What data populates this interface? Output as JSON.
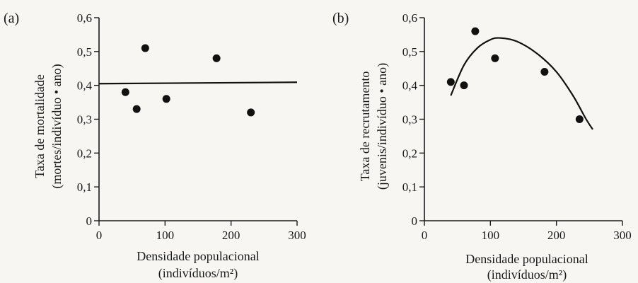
{
  "chart_data": [
    {
      "panel": "(a)",
      "type": "scatter",
      "xlabel": "Densidade populacional",
      "xunit_line": "(indivíduos/m²)",
      "ylabel": "Taxa de mortalidade",
      "yunit_line": "(mortes/indivíduo • ano)",
      "xlim": [
        0,
        300
      ],
      "ylim": [
        0,
        0.6
      ],
      "xticks": [
        0,
        100,
        200,
        300
      ],
      "xtick_labels": [
        "0",
        "100",
        "200",
        "300"
      ],
      "yticks": [
        0,
        0.1,
        0.2,
        0.3,
        0.4,
        0.5,
        0.6
      ],
      "ytick_labels": [
        "0",
        "0,1",
        "0,2",
        "0,3",
        "0,4",
        "0,5",
        "0,6"
      ],
      "points": [
        {
          "x": 40,
          "y": 0.38
        },
        {
          "x": 57,
          "y": 0.33
        },
        {
          "x": 70,
          "y": 0.51
        },
        {
          "x": 102,
          "y": 0.36
        },
        {
          "x": 178,
          "y": 0.48
        },
        {
          "x": 230,
          "y": 0.32
        }
      ],
      "fit": {
        "kind": "horizontal",
        "y": 0.405,
        "x_range": [
          0,
          300
        ]
      },
      "grid": false
    },
    {
      "panel": "(b)",
      "type": "scatter",
      "xlabel": "Densidade populacional",
      "xunit_line": "(indivíduos/m²)",
      "ylabel": "Taxa de recrutamento",
      "yunit_line": "(juvenis/indivíduo • ano)",
      "xlim": [
        0,
        300
      ],
      "ylim": [
        0,
        0.6
      ],
      "xticks": [
        0,
        100,
        200,
        300
      ],
      "xtick_labels": [
        "0",
        "100",
        "200",
        "300"
      ],
      "yticks": [
        0,
        0.1,
        0.2,
        0.3,
        0.4,
        0.5,
        0.6
      ],
      "ytick_labels": [
        "0",
        "0,1",
        "0,2",
        "0,3",
        "0,4",
        "0,5",
        "0,6"
      ],
      "points": [
        {
          "x": 40,
          "y": 0.41
        },
        {
          "x": 60,
          "y": 0.4
        },
        {
          "x": 77,
          "y": 0.56
        },
        {
          "x": 107,
          "y": 0.48
        },
        {
          "x": 182,
          "y": 0.44
        },
        {
          "x": 235,
          "y": 0.3
        }
      ],
      "fit": {
        "kind": "curve",
        "points": [
          [
            40,
            0.37
          ],
          [
            60,
            0.46
          ],
          [
            80,
            0.51
          ],
          [
            100,
            0.535
          ],
          [
            115,
            0.54
          ],
          [
            140,
            0.53
          ],
          [
            170,
            0.495
          ],
          [
            200,
            0.44
          ],
          [
            225,
            0.37
          ],
          [
            245,
            0.3
          ],
          [
            255,
            0.27
          ]
        ]
      },
      "grid": false
    }
  ]
}
